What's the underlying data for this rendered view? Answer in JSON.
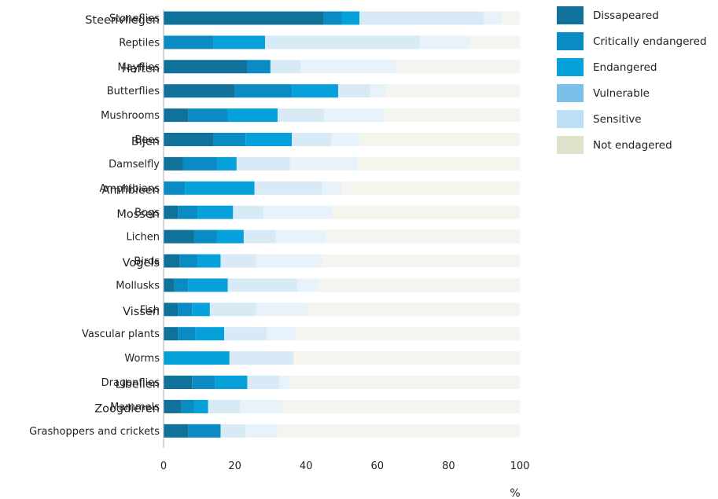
{
  "chart_data": {
    "type": "bar",
    "orientation": "horizontal",
    "stacked": true,
    "xlabel": "%",
    "xlim": [
      0,
      100
    ],
    "xticks": [
      "0",
      "20",
      "40",
      "60",
      "80",
      "100"
    ],
    "legend_position": "right",
    "grid": false,
    "categories": [
      "Stoneflies",
      "Reptiles",
      "Mayflies",
      "Butterflies",
      "Mushrooms",
      "Bees",
      "Damselfly",
      "Amphibians",
      "Bogs",
      "Lichen",
      "Birds",
      "Mollusks",
      "Fish",
      "Vascular plants",
      "Worms",
      "Dragonflies",
      "Mammels",
      "Grashoppers and crickets"
    ],
    "overlay_labels": [
      "Steenvliegen",
      "",
      "Haften",
      "",
      "",
      "Bijen",
      "",
      "Amfibieen",
      "Mossen",
      "",
      "Vogels",
      "",
      "Vissen",
      "",
      "",
      "Libellen",
      "Zoogdieren",
      ""
    ],
    "series": [
      {
        "name": "Dissapeared",
        "color": "#10719a",
        "values": [
          45,
          0,
          23.5,
          20,
          7,
          14,
          5.5,
          0,
          4,
          8.5,
          4.5,
          3,
          4,
          4,
          0,
          8,
          5,
          7
        ]
      },
      {
        "name": "Critically endangered",
        "color": "#0b8bc4",
        "values": [
          5,
          14,
          6.5,
          16,
          11,
          9,
          9.5,
          6,
          5.5,
          6.5,
          5,
          4,
          4,
          5,
          0,
          6.5,
          3.5,
          9
        ]
      },
      {
        "name": "Endangered",
        "color": "#06a0db",
        "values": [
          5,
          14.5,
          0,
          13,
          14,
          13,
          5.5,
          19.5,
          10,
          7.5,
          6.5,
          11,
          5,
          8,
          18.5,
          9,
          4,
          0
        ]
      },
      {
        "name": "Vulnerable",
        "color": "#79c1ea",
        "values": [
          0,
          0,
          0,
          0,
          0,
          0,
          0,
          0,
          0,
          0,
          0,
          0,
          0,
          0,
          0,
          0,
          0,
          0
        ]
      },
      {
        "name": "Sensitive",
        "color": "#d8eaf6",
        "values": [
          35,
          43.5,
          8.5,
          9,
          13,
          11,
          15,
          19,
          8.5,
          9,
          10,
          19.5,
          13,
          12,
          18,
          9,
          9,
          7
        ]
      },
      {
        "name": "Sensitive",
        "color": "#e8f2fa",
        "values": [
          5,
          14,
          27,
          4.5,
          17,
          8,
          19,
          5.5,
          19.5,
          14,
          18.5,
          6,
          14.5,
          8,
          0,
          3,
          12,
          9
        ]
      },
      {
        "name": "Not endagered",
        "color": "#f3f5ee",
        "values": [
          5,
          14,
          34.5,
          37.5,
          38,
          45,
          45.5,
          50,
          52.5,
          54.5,
          55.5,
          56.5,
          59.5,
          63,
          63.5,
          64.5,
          66.5,
          68
        ]
      }
    ],
    "legend": [
      {
        "label": "Dissapeared",
        "color": "#10719a"
      },
      {
        "label": "Critically endangered",
        "color": "#0b8bc4"
      },
      {
        "label": "Endangered",
        "color": "#06a0db"
      },
      {
        "label": "Vulnerable",
        "color": "#79c1ea"
      },
      {
        "label": "Sensitive",
        "color": "#bcdff4"
      },
      {
        "label": "Not endagered",
        "color": "#dfe3cb"
      }
    ]
  }
}
